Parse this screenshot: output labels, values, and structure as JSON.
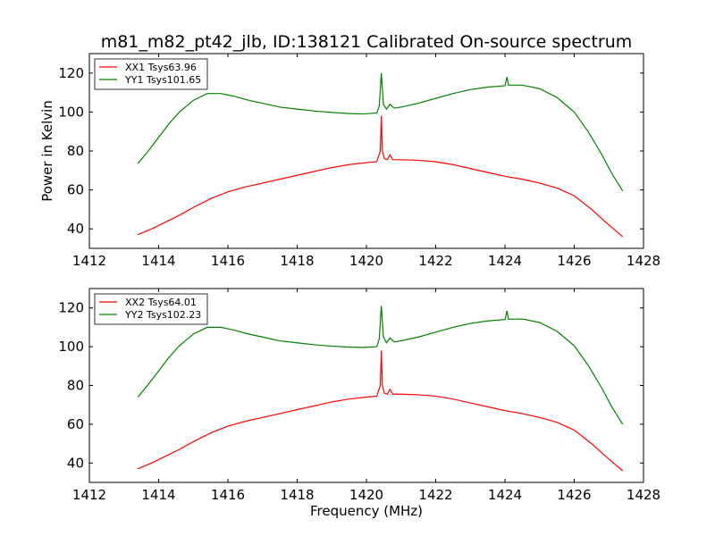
{
  "chart_data": [
    {
      "type": "line",
      "title": "m81_m82_pt42_jlb, ID:138121 Calibrated On-source spectrum",
      "xlabel": "",
      "ylabel": "Power in Kelvin",
      "xlim": [
        1412,
        1428
      ],
      "ylim": [
        30,
        130
      ],
      "xticks": [
        1412,
        1414,
        1416,
        1418,
        1420,
        1422,
        1424,
        1426,
        1428
      ],
      "yticks": [
        40,
        60,
        80,
        100,
        120
      ],
      "grid": false,
      "legend_position": "top-left",
      "series": [
        {
          "name": "XX1 Tsys63.96",
          "color": "#ff0000",
          "points": [
            [
              1413.4,
              37
            ],
            [
              1413.8,
              40
            ],
            [
              1414.2,
              43.5
            ],
            [
              1414.6,
              47
            ],
            [
              1415.0,
              51
            ],
            [
              1415.5,
              55.5
            ],
            [
              1416.0,
              59
            ],
            [
              1416.5,
              61.5
            ],
            [
              1417.0,
              63.5
            ],
            [
              1417.5,
              65.5
            ],
            [
              1418.0,
              67.5
            ],
            [
              1418.5,
              69.5
            ],
            [
              1419.0,
              71.5
            ],
            [
              1419.5,
              73
            ],
            [
              1420.0,
              74
            ],
            [
              1420.3,
              74.5
            ],
            [
              1420.4,
              80
            ],
            [
              1420.43,
              98
            ],
            [
              1420.46,
              80
            ],
            [
              1420.52,
              76
            ],
            [
              1420.6,
              75.5
            ],
            [
              1420.68,
              78
            ],
            [
              1420.76,
              75.5
            ],
            [
              1421.0,
              75.5
            ],
            [
              1421.5,
              75.2
            ],
            [
              1422.0,
              74.5
            ],
            [
              1422.5,
              73
            ],
            [
              1423.0,
              71
            ],
            [
              1423.5,
              69
            ],
            [
              1424.0,
              67
            ],
            [
              1424.5,
              65.5
            ],
            [
              1425.0,
              63.5
            ],
            [
              1425.5,
              61
            ],
            [
              1426.0,
              57
            ],
            [
              1426.5,
              50
            ],
            [
              1427.0,
              42
            ],
            [
              1427.4,
              36
            ]
          ]
        },
        {
          "name": "YY1 Tsys101.65",
          "color": "#008000",
          "points": [
            [
              1413.4,
              73.5
            ],
            [
              1413.7,
              80
            ],
            [
              1414.0,
              87
            ],
            [
              1414.3,
              94
            ],
            [
              1414.6,
              100
            ],
            [
              1415.0,
              106
            ],
            [
              1415.4,
              109.5
            ],
            [
              1415.8,
              109.5
            ],
            [
              1416.2,
              108
            ],
            [
              1416.6,
              106
            ],
            [
              1417.0,
              104.5
            ],
            [
              1417.5,
              102.5
            ],
            [
              1418.0,
              101.5
            ],
            [
              1418.5,
              100.5
            ],
            [
              1419.0,
              99.8
            ],
            [
              1419.5,
              99.2
            ],
            [
              1419.9,
              99.0
            ],
            [
              1420.3,
              99.5
            ],
            [
              1420.37,
              103
            ],
            [
              1420.43,
              120
            ],
            [
              1420.49,
              104
            ],
            [
              1420.58,
              101.5
            ],
            [
              1420.68,
              104
            ],
            [
              1420.8,
              102
            ],
            [
              1421.0,
              102.5
            ],
            [
              1421.5,
              104.5
            ],
            [
              1422.0,
              107
            ],
            [
              1422.5,
              109.5
            ],
            [
              1423.0,
              111.5
            ],
            [
              1423.5,
              112.8
            ],
            [
              1424.0,
              113.5
            ],
            [
              1424.06,
              118
            ],
            [
              1424.1,
              113.8
            ],
            [
              1424.5,
              113.8
            ],
            [
              1425.0,
              112
            ],
            [
              1425.5,
              107.5
            ],
            [
              1426.0,
              100
            ],
            [
              1426.4,
              90
            ],
            [
              1426.8,
              78
            ],
            [
              1427.1,
              68
            ],
            [
              1427.4,
              59.5
            ]
          ]
        }
      ]
    },
    {
      "type": "line",
      "title": "",
      "xlabel": "Frequency (MHz)",
      "ylabel": "",
      "xlim": [
        1412,
        1428
      ],
      "ylim": [
        30,
        130
      ],
      "xticks": [
        1412,
        1414,
        1416,
        1418,
        1420,
        1422,
        1424,
        1426,
        1428
      ],
      "yticks": [
        40,
        60,
        80,
        100,
        120
      ],
      "grid": false,
      "legend_position": "top-left",
      "series": [
        {
          "name": "XX2 Tsys64.01",
          "color": "#ff0000",
          "points": [
            [
              1413.4,
              37
            ],
            [
              1413.8,
              40
            ],
            [
              1414.2,
              43.5
            ],
            [
              1414.6,
              47
            ],
            [
              1415.0,
              51
            ],
            [
              1415.5,
              55.5
            ],
            [
              1416.0,
              59
            ],
            [
              1416.5,
              61.5
            ],
            [
              1417.0,
              63.5
            ],
            [
              1417.5,
              65.5
            ],
            [
              1418.0,
              67.5
            ],
            [
              1418.5,
              69.5
            ],
            [
              1419.0,
              71.5
            ],
            [
              1419.5,
              73
            ],
            [
              1420.0,
              74
            ],
            [
              1420.3,
              74.5
            ],
            [
              1420.4,
              80
            ],
            [
              1420.43,
              98
            ],
            [
              1420.46,
              80
            ],
            [
              1420.52,
              76
            ],
            [
              1420.6,
              75.5
            ],
            [
              1420.68,
              78
            ],
            [
              1420.76,
              75.5
            ],
            [
              1421.0,
              75.5
            ],
            [
              1421.5,
              75.2
            ],
            [
              1422.0,
              74.5
            ],
            [
              1422.5,
              73
            ],
            [
              1423.0,
              71
            ],
            [
              1423.5,
              69
            ],
            [
              1424.0,
              67
            ],
            [
              1424.5,
              65.5
            ],
            [
              1425.0,
              63.5
            ],
            [
              1425.5,
              61
            ],
            [
              1426.0,
              57
            ],
            [
              1426.5,
              50
            ],
            [
              1427.0,
              42
            ],
            [
              1427.4,
              36
            ]
          ]
        },
        {
          "name": "YY2 Tsys102.23",
          "color": "#008000",
          "points": [
            [
              1413.4,
              74
            ],
            [
              1413.7,
              80.5
            ],
            [
              1414.0,
              87.5
            ],
            [
              1414.3,
              94.5
            ],
            [
              1414.6,
              100.5
            ],
            [
              1415.0,
              106.5
            ],
            [
              1415.4,
              110
            ],
            [
              1415.8,
              110
            ],
            [
              1416.2,
              108.5
            ],
            [
              1416.6,
              106.5
            ],
            [
              1417.0,
              105
            ],
            [
              1417.5,
              103
            ],
            [
              1418.0,
              102
            ],
            [
              1418.5,
              101
            ],
            [
              1419.0,
              100.3
            ],
            [
              1419.5,
              99.8
            ],
            [
              1419.9,
              99.6
            ],
            [
              1420.3,
              100
            ],
            [
              1420.37,
              104
            ],
            [
              1420.43,
              121
            ],
            [
              1420.49,
              105
            ],
            [
              1420.58,
              102
            ],
            [
              1420.68,
              104.5
            ],
            [
              1420.8,
              102.5
            ],
            [
              1421.0,
              103
            ],
            [
              1421.5,
              105
            ],
            [
              1422.0,
              107.5
            ],
            [
              1422.5,
              110
            ],
            [
              1423.0,
              112
            ],
            [
              1423.5,
              113.3
            ],
            [
              1424.0,
              114
            ],
            [
              1424.06,
              118.5
            ],
            [
              1424.1,
              114.2
            ],
            [
              1424.5,
              114.3
            ],
            [
              1425.0,
              112.5
            ],
            [
              1425.5,
              108
            ],
            [
              1426.0,
              100.5
            ],
            [
              1426.4,
              90.5
            ],
            [
              1426.8,
              78.5
            ],
            [
              1427.1,
              68.5
            ],
            [
              1427.4,
              60
            ]
          ]
        }
      ]
    }
  ]
}
